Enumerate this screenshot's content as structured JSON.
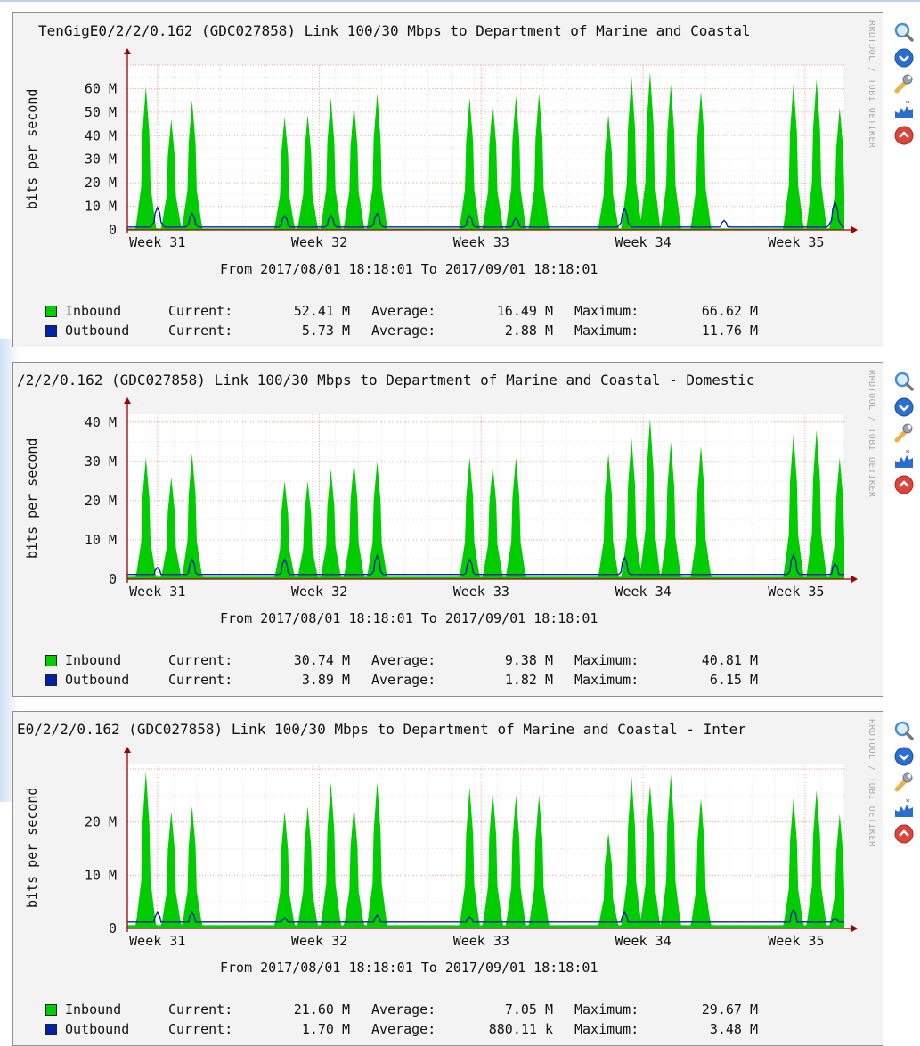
{
  "graphs": [
    {
      "title": "TenGigE0/2/2/0.162 (GDC027858) Link 100/30 Mbps to Department of Marine and Coastal",
      "side_credit": "RRDTOOL / TOBI OETIKER",
      "ylabel": "bits per second",
      "range": "From 2017/08/01 18:18:01 To 2017/09/01 18:18:01",
      "legend": [
        {
          "name": "Inbound",
          "current_label": "Current:",
          "current": "52.41 M",
          "average_label": "Average:",
          "average": "16.49 M",
          "maximum_label": "Maximum:",
          "maximum": "66.62 M"
        },
        {
          "name": "Outbound",
          "current_label": "Current:",
          "current": "5.73 M",
          "average_label": "Average:",
          "average": "2.88 M",
          "maximum_label": "Maximum:",
          "maximum": "11.76 M"
        }
      ]
    },
    {
      "title": "/2/2/0.162 (GDC027858) Link 100/30 Mbps to Department of Marine and Coastal - Domestic",
      "side_credit": "RRDTOOL / TOBI OETIKER",
      "ylabel": "bits per second",
      "range": "From 2017/08/01 18:18:01 To 2017/09/01 18:18:01",
      "legend": [
        {
          "name": "Inbound",
          "current_label": "Current:",
          "current": "30.74 M",
          "average_label": "Average:",
          "average": "9.38 M",
          "maximum_label": "Maximum:",
          "maximum": "40.81 M"
        },
        {
          "name": "Outbound",
          "current_label": "Current:",
          "current": "3.89 M",
          "average_label": "Average:",
          "average": "1.82 M",
          "maximum_label": "Maximum:",
          "maximum": "6.15 M"
        }
      ]
    },
    {
      "title": "E0/2/2/0.162 (GDC027858) Link 100/30 Mbps to Department of Marine and Coastal - Inter",
      "side_credit": "RRDTOOL / TOBI OETIKER",
      "ylabel": "bits per second",
      "range": "From 2017/08/01 18:18:01 To 2017/09/01 18:18:01",
      "legend": [
        {
          "name": "Inbound",
          "current_label": "Current:",
          "current": "21.60 M",
          "average_label": "Average:",
          "average": "7.05 M",
          "maximum_label": "Maximum:",
          "maximum": "29.67 M"
        },
        {
          "name": "Outbound",
          "current_label": "Current:",
          "current": "1.70 M",
          "average_label": "Average:",
          "average": "880.11 k",
          "maximum_label": "Maximum:",
          "maximum": "3.48 M"
        }
      ]
    }
  ],
  "tools": [
    {
      "name": "zoom-icon",
      "color": "#4a8fd0"
    },
    {
      "name": "download-icon",
      "color": "#2a6fcf"
    },
    {
      "name": "settings-wrench-icon",
      "color": "#d9a23a"
    },
    {
      "name": "graph-icon",
      "color": "#2a6fcf"
    },
    {
      "name": "remove-icon",
      "color": "#d9453a"
    }
  ],
  "colors": {
    "inbound": "#00cc00",
    "outbound": "#0022aa",
    "grid_minor": "#e2e2e2",
    "grid_major": "#f0a0a0",
    "axis": "#a00000"
  },
  "chart_data": [
    {
      "type": "area",
      "x_ticks": [
        "Week 31",
        "Week 32",
        "Week 33",
        "Week 34",
        "Week 35"
      ],
      "y_ticks": [
        "0",
        "10 M",
        "20 M",
        "30 M",
        "40 M",
        "50 M",
        "60 M"
      ],
      "ylim": [
        0,
        70
      ],
      "y_unit": "Mbps",
      "x_range_days": [
        0,
        31
      ],
      "grid": true,
      "series": [
        {
          "name": "Inbound",
          "color": "#00cc00",
          "peaks": [
            {
              "day": 0.8,
              "v": 61
            },
            {
              "day": 1.9,
              "v": 47
            },
            {
              "day": 2.8,
              "v": 55
            },
            {
              "day": 6.8,
              "v": 48
            },
            {
              "day": 7.8,
              "v": 49
            },
            {
              "day": 8.8,
              "v": 56
            },
            {
              "day": 9.8,
              "v": 53
            },
            {
              "day": 10.8,
              "v": 58
            },
            {
              "day": 14.8,
              "v": 56
            },
            {
              "day": 15.8,
              "v": 54
            },
            {
              "day": 16.8,
              "v": 57
            },
            {
              "day": 17.8,
              "v": 58
            },
            {
              "day": 20.8,
              "v": 49
            },
            {
              "day": 21.8,
              "v": 65
            },
            {
              "day": 22.6,
              "v": 67
            },
            {
              "day": 23.5,
              "v": 62
            },
            {
              "day": 24.8,
              "v": 59
            },
            {
              "day": 28.8,
              "v": 62
            },
            {
              "day": 29.8,
              "v": 64
            },
            {
              "day": 30.8,
              "v": 52
            }
          ]
        },
        {
          "name": "Outbound",
          "color": "#0022aa",
          "peaks": [
            {
              "day": 1.3,
              "v": 9.5
            },
            {
              "day": 2.8,
              "v": 7
            },
            {
              "day": 6.8,
              "v": 6
            },
            {
              "day": 8.8,
              "v": 6
            },
            {
              "day": 10.8,
              "v": 7
            },
            {
              "day": 14.8,
              "v": 6
            },
            {
              "day": 16.8,
              "v": 5
            },
            {
              "day": 21.5,
              "v": 9
            },
            {
              "day": 25.8,
              "v": 4
            },
            {
              "day": 30.6,
              "v": 11.8
            }
          ]
        }
      ]
    },
    {
      "type": "area",
      "x_ticks": [
        "Week 31",
        "Week 32",
        "Week 33",
        "Week 34",
        "Week 35"
      ],
      "y_ticks": [
        "0",
        "10 M",
        "20 M",
        "30 M",
        "40 M"
      ],
      "ylim": [
        0,
        42
      ],
      "y_unit": "Mbps",
      "x_range_days": [
        0,
        31
      ],
      "grid": true,
      "series": [
        {
          "name": "Inbound",
          "color": "#00cc00",
          "peaks": [
            {
              "day": 0.8,
              "v": 31
            },
            {
              "day": 1.9,
              "v": 26
            },
            {
              "day": 2.8,
              "v": 32
            },
            {
              "day": 6.8,
              "v": 25
            },
            {
              "day": 7.8,
              "v": 25
            },
            {
              "day": 8.8,
              "v": 28
            },
            {
              "day": 9.8,
              "v": 30
            },
            {
              "day": 10.8,
              "v": 30
            },
            {
              "day": 14.8,
              "v": 31
            },
            {
              "day": 15.8,
              "v": 29
            },
            {
              "day": 16.8,
              "v": 31
            },
            {
              "day": 20.8,
              "v": 32
            },
            {
              "day": 21.8,
              "v": 36
            },
            {
              "day": 22.6,
              "v": 41
            },
            {
              "day": 23.5,
              "v": 35
            },
            {
              "day": 24.8,
              "v": 34
            },
            {
              "day": 28.8,
              "v": 37
            },
            {
              "day": 29.8,
              "v": 38
            },
            {
              "day": 30.8,
              "v": 31
            }
          ]
        },
        {
          "name": "Outbound",
          "color": "#0022aa",
          "peaks": [
            {
              "day": 1.3,
              "v": 3
            },
            {
              "day": 2.8,
              "v": 5
            },
            {
              "day": 6.8,
              "v": 5
            },
            {
              "day": 10.8,
              "v": 6
            },
            {
              "day": 14.8,
              "v": 5
            },
            {
              "day": 21.5,
              "v": 5.5
            },
            {
              "day": 28.8,
              "v": 6.2
            },
            {
              "day": 30.6,
              "v": 4
            }
          ]
        }
      ]
    },
    {
      "type": "area",
      "x_ticks": [
        "Week 31",
        "Week 32",
        "Week 33",
        "Week 34",
        "Week 35"
      ],
      "y_ticks": [
        "0",
        "10 M",
        "20 M"
      ],
      "ylim": [
        0,
        31
      ],
      "y_unit": "Mbps",
      "x_range_days": [
        0,
        31
      ],
      "grid": true,
      "series": [
        {
          "name": "Inbound",
          "color": "#00cc00",
          "peaks": [
            {
              "day": 0.8,
              "v": 29.5
            },
            {
              "day": 1.9,
              "v": 22
            },
            {
              "day": 2.8,
              "v": 23
            },
            {
              "day": 6.8,
              "v": 22
            },
            {
              "day": 7.8,
              "v": 23
            },
            {
              "day": 8.8,
              "v": 27.5
            },
            {
              "day": 9.8,
              "v": 23
            },
            {
              "day": 10.8,
              "v": 27.5
            },
            {
              "day": 14.8,
              "v": 26.5
            },
            {
              "day": 15.8,
              "v": 26
            },
            {
              "day": 16.8,
              "v": 25
            },
            {
              "day": 17.8,
              "v": 25
            },
            {
              "day": 20.8,
              "v": 18
            },
            {
              "day": 21.8,
              "v": 28.5
            },
            {
              "day": 22.6,
              "v": 27
            },
            {
              "day": 23.5,
              "v": 29
            },
            {
              "day": 24.8,
              "v": 24.5
            },
            {
              "day": 28.8,
              "v": 24.5
            },
            {
              "day": 29.8,
              "v": 26
            },
            {
              "day": 30.8,
              "v": 21.5
            }
          ]
        },
        {
          "name": "Outbound",
          "color": "#0022aa",
          "peaks": [
            {
              "day": 1.3,
              "v": 3
            },
            {
              "day": 2.8,
              "v": 3
            },
            {
              "day": 6.8,
              "v": 2
            },
            {
              "day": 10.8,
              "v": 2.5
            },
            {
              "day": 14.8,
              "v": 2.2
            },
            {
              "day": 21.5,
              "v": 3
            },
            {
              "day": 28.8,
              "v": 3.5
            },
            {
              "day": 30.6,
              "v": 2
            }
          ]
        }
      ]
    }
  ]
}
